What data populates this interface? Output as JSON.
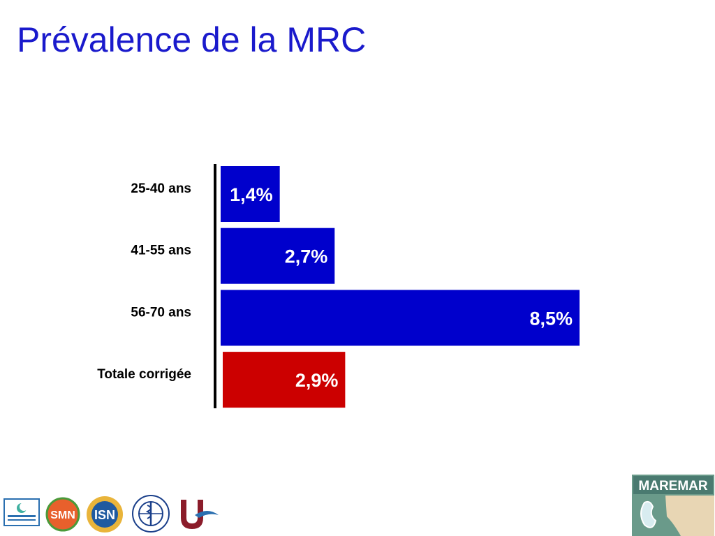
{
  "slide": {
    "title": "Prévalence de la MRC"
  },
  "chart_data": {
    "type": "bar",
    "orientation": "horizontal",
    "categories": [
      "25-40 ans",
      "41-55 ans",
      "56-70 ans",
      "Totale corrigée"
    ],
    "values": [
      1.4,
      2.7,
      8.5,
      2.9
    ],
    "value_labels": [
      "1,4%",
      "2,7%",
      "8,5%",
      "2,9%"
    ],
    "colors": [
      "#0000cc",
      "#0000cc",
      "#0000cc",
      "#cc0000"
    ],
    "title": "",
    "xlabel": "",
    "ylabel": "",
    "xlim": [
      0,
      8.5
    ],
    "grid": false,
    "legend": "none"
  },
  "footer": {
    "logos": [
      "crescent-logo",
      "smn-logo",
      "isn-logo",
      "who-logo",
      "u-logo",
      "maremar-logo"
    ],
    "maremar_text": "MAREMAR",
    "smn_text": "SMN",
    "isn_text": "ISN"
  }
}
